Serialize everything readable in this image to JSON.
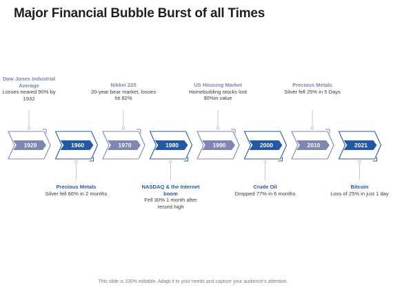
{
  "slide": {
    "title": "Major Financial Bubble Burst of all Times",
    "footer": "This slide is 100% editable. Adapt it to your needs and capture your audience’s attention."
  },
  "colors": {
    "light_chevron": "#7d86b5",
    "dark_chevron": "#2358a8",
    "connector": "#b4b7c8"
  },
  "timeline": [
    {
      "year": "1929",
      "tone": "light",
      "side": "top",
      "heading": "Dow Jones Industrial Average",
      "text": "Losses neared 90% by 1932"
    },
    {
      "year": "1960",
      "tone": "dark",
      "side": "bottom",
      "heading": "Precious Metals",
      "text": "Silver fell 66% in 2 months"
    },
    {
      "year": "1970",
      "tone": "light",
      "side": "top",
      "heading": "Nikkei 225",
      "text": "20-year bear market, losses hit 82%"
    },
    {
      "year": "1980",
      "tone": "dark",
      "side": "bottom",
      "heading": "NASDAQ & the Internet boom",
      "text": "Fell 30% 1 month after record high"
    },
    {
      "year": "1990",
      "tone": "light",
      "side": "top",
      "heading": "US Housing Market",
      "text": "Homebuilding stocks lost 90%in value"
    },
    {
      "year": "2000",
      "tone": "dark",
      "side": "bottom",
      "heading": "Crude Oil",
      "text": "Dropped 77% in 6 months"
    },
    {
      "year": "2010",
      "tone": "light",
      "side": "top",
      "heading": "Precious Metals",
      "text": "Silver fell 25% in 5 Days"
    },
    {
      "year": "2021",
      "tone": "dark",
      "side": "bottom",
      "heading": "Bitcoin",
      "text": "Loss of 25% in just 1 day"
    }
  ]
}
